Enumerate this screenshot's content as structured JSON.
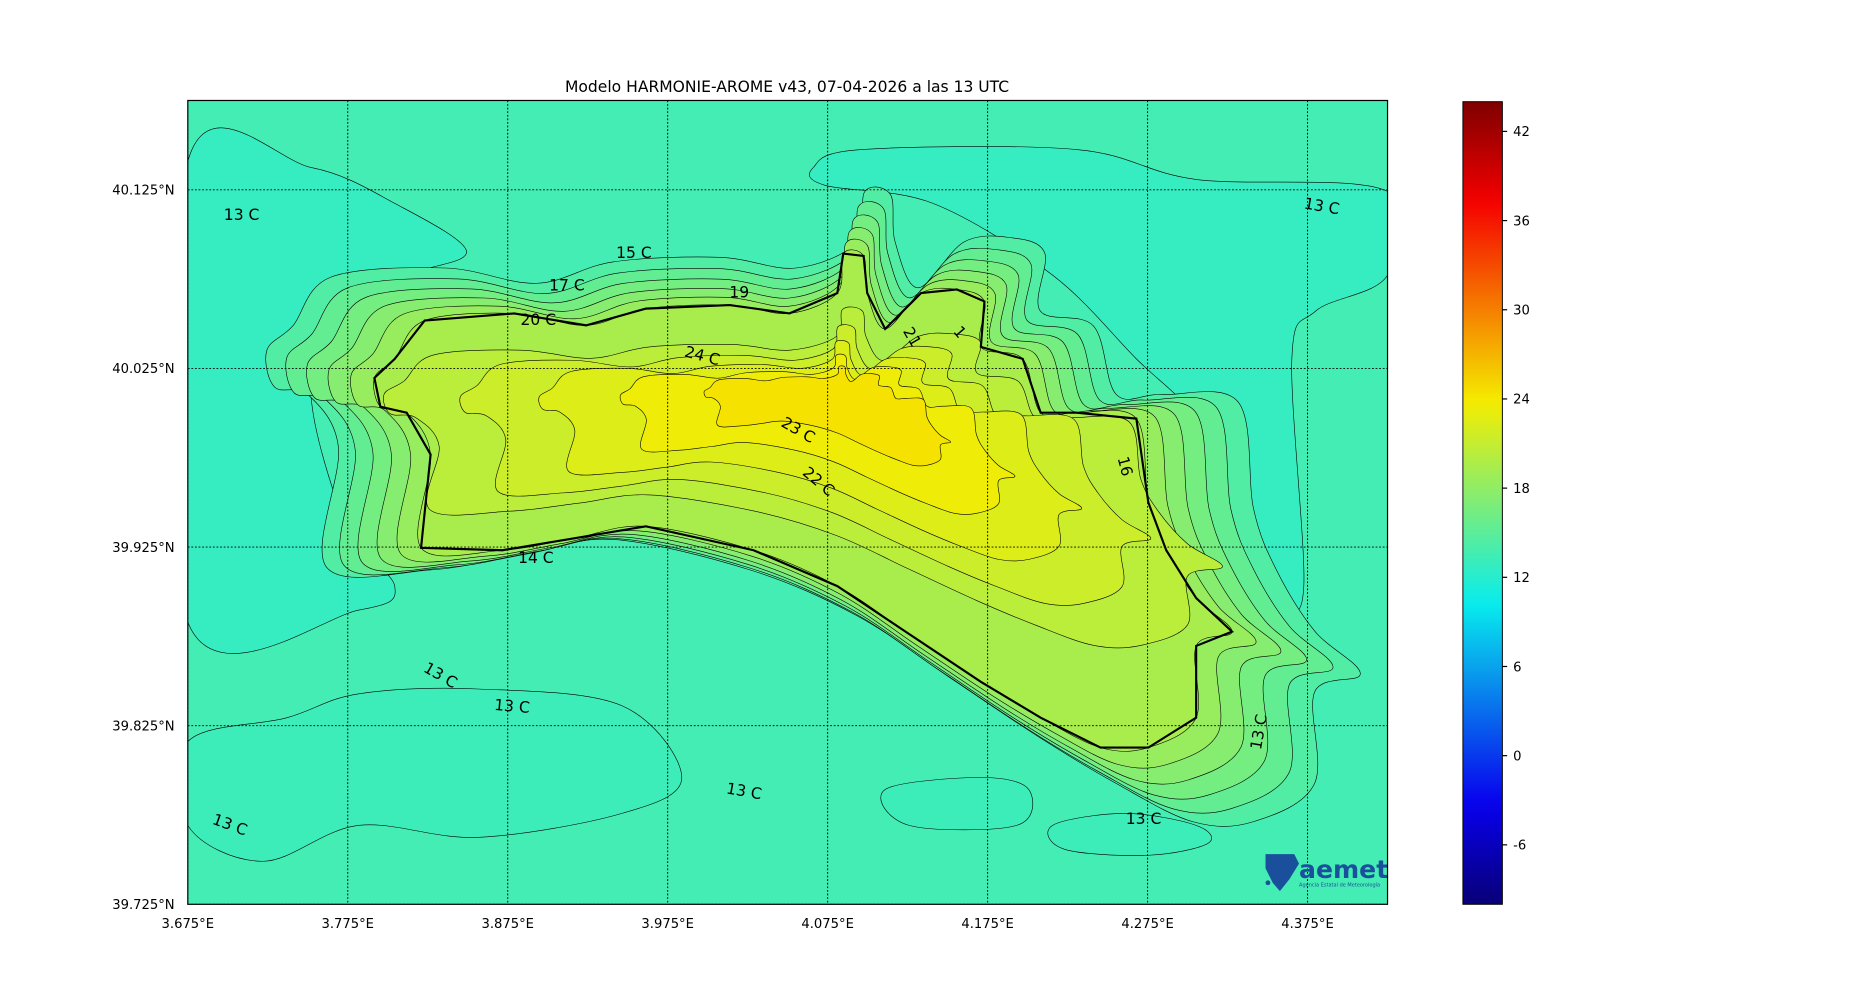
{
  "chart_data": {
    "type": "heatmap",
    "title": "Modelo HARMONIE-AROME v43, 07-04-2026 a las 13 UTC",
    "variable_unit": "C",
    "colormap": "jet",
    "xlim": [
      3.675,
      4.425
    ],
    "ylim": [
      39.725,
      40.175
    ],
    "x_ticks": [
      "3.675°E",
      "3.775°E",
      "3.875°E",
      "3.975°E",
      "4.075°E",
      "4.175°E",
      "4.275°E",
      "4.375°E"
    ],
    "x_tick_values": [
      3.675,
      3.775,
      3.875,
      3.975,
      4.075,
      4.175,
      4.275,
      4.375
    ],
    "y_ticks": [
      "39.725°N",
      "39.825°N",
      "39.925°N",
      "40.025°N",
      "40.125°N"
    ],
    "y_tick_values": [
      39.725,
      39.825,
      39.925,
      40.025,
      40.125
    ],
    "grid": true,
    "colorbar": {
      "range": [
        -10,
        44
      ],
      "ticks": [
        "-6",
        "0",
        "6",
        "12",
        "18",
        "24",
        "30",
        "36",
        "42"
      ],
      "tick_values": [
        -6,
        0,
        6,
        12,
        18,
        24,
        30,
        36,
        42
      ]
    },
    "contour_levels": [
      13,
      14,
      15,
      16,
      17,
      18,
      19,
      20,
      21,
      22,
      23,
      24
    ],
    "contour_labels": [
      "13 C",
      "13 C",
      "15 C",
      "17 C",
      "19",
      "20 C",
      "24 C",
      "23 C",
      "22 C",
      "21",
      "1",
      "16",
      "14 C",
      "13 C",
      "13 C",
      "13 C",
      "13 C",
      "13 C",
      "13 C"
    ],
    "min_value_approx": 13,
    "max_value_approx": 24
  },
  "logo": {
    "name": "aemet",
    "subtitle": "Agencia Estatal de Meteorología",
    "color": "#1a4f9c"
  }
}
